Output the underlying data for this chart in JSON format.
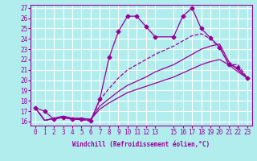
{
  "xlabel": "Windchill (Refroidissement éolien,°C)",
  "bg_color": "#b2eded",
  "grid_color": "#ffffff",
  "line_color": "#990099",
  "xmin": -0.5,
  "xmax": 23.5,
  "ymin": 15.6,
  "ymax": 27.3,
  "lines": [
    {
      "x": [
        0,
        1,
        2,
        3,
        4,
        5,
        6,
        7,
        8,
        9,
        10,
        11,
        12,
        13,
        15,
        16,
        17,
        18,
        19,
        20,
        21,
        22,
        23
      ],
      "y": [
        17.3,
        17.0,
        16.2,
        16.4,
        16.2,
        16.2,
        16.1,
        18.2,
        22.2,
        24.7,
        26.2,
        26.2,
        25.2,
        24.2,
        24.2,
        26.2,
        27.0,
        25.0,
        24.1,
        23.2,
        21.5,
        21.2,
        20.2
      ],
      "marker": "D",
      "markersize": 2.5,
      "linewidth": 0.9,
      "linestyle": "-"
    },
    {
      "x": [
        0,
        1,
        2,
        3,
        4,
        5,
        6,
        7,
        8,
        9,
        10,
        11,
        12,
        13,
        15,
        16,
        17,
        18,
        19,
        20,
        21,
        22,
        23
      ],
      "y": [
        17.3,
        16.1,
        16.3,
        16.4,
        16.2,
        16.2,
        16.0,
        18.1,
        19.2,
        20.2,
        21.0,
        21.5,
        22.0,
        22.5,
        23.3,
        23.8,
        24.3,
        24.5,
        24.0,
        23.2,
        21.5,
        21.5,
        20.2
      ],
      "marker": null,
      "markersize": 0,
      "linewidth": 0.9,
      "linestyle": "--"
    },
    {
      "x": [
        0,
        1,
        2,
        3,
        4,
        5,
        6,
        7,
        8,
        9,
        10,
        11,
        12,
        13,
        15,
        16,
        17,
        18,
        19,
        20,
        21,
        22,
        23
      ],
      "y": [
        17.3,
        16.1,
        16.3,
        16.5,
        16.3,
        16.3,
        16.2,
        17.5,
        18.2,
        18.9,
        19.5,
        19.9,
        20.3,
        20.8,
        21.5,
        22.0,
        22.5,
        23.0,
        23.3,
        23.5,
        21.8,
        21.0,
        20.2
      ],
      "marker": null,
      "markersize": 0,
      "linewidth": 0.9,
      "linestyle": "-"
    },
    {
      "x": [
        0,
        1,
        2,
        3,
        4,
        5,
        6,
        7,
        8,
        9,
        10,
        11,
        12,
        13,
        15,
        16,
        17,
        18,
        19,
        20,
        21,
        22,
        23
      ],
      "y": [
        17.3,
        16.1,
        16.3,
        16.5,
        16.3,
        16.3,
        16.2,
        17.2,
        17.8,
        18.3,
        18.8,
        19.1,
        19.4,
        19.7,
        20.3,
        20.7,
        21.1,
        21.5,
        21.8,
        22.0,
        21.5,
        20.8,
        20.2
      ],
      "marker": null,
      "markersize": 0,
      "linewidth": 0.9,
      "linestyle": "-"
    }
  ],
  "xticks": [
    0,
    1,
    2,
    3,
    4,
    5,
    6,
    7,
    8,
    9,
    10,
    11,
    12,
    13,
    15,
    16,
    17,
    18,
    19,
    20,
    21,
    22,
    23
  ],
  "yticks": [
    16,
    17,
    18,
    19,
    20,
    21,
    22,
    23,
    24,
    25,
    26,
    27
  ],
  "tick_fontsize": 5.5,
  "xlabel_fontsize": 5.5
}
